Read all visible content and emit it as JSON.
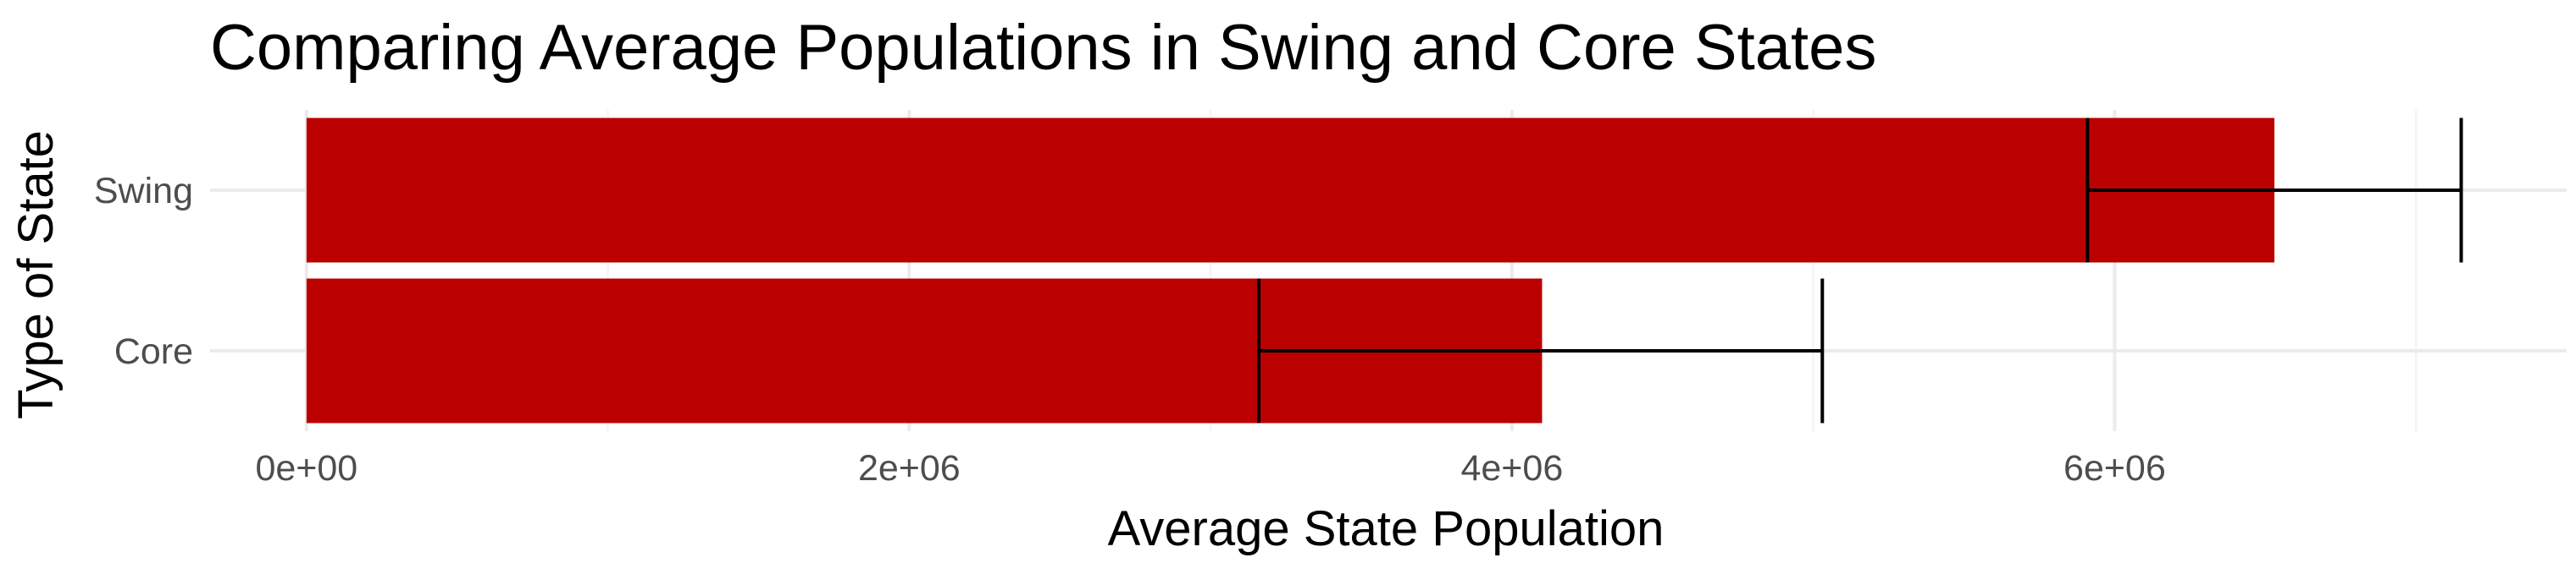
{
  "chart_data": {
    "type": "bar",
    "orientation": "horizontal",
    "title": "Comparing Average Populations in Swing and Core States",
    "xlabel": "Average State Population",
    "ylabel": "Type of State",
    "categories": [
      "Core",
      "Swing"
    ],
    "values": [
      4100000,
      6530000
    ],
    "error_bars": [
      {
        "category": "Core",
        "lower": 3160000,
        "upper": 5030000
      },
      {
        "category": "Swing",
        "lower": 5910000,
        "upper": 7150000
      }
    ],
    "xlim": [
      -320000,
      7500000
    ],
    "x_ticks": [
      0,
      2000000,
      4000000,
      6000000
    ],
    "x_tick_labels": [
      "0e+00",
      "2e+06",
      "4e+06",
      "6e+06"
    ],
    "grid": true,
    "legend": "none",
    "colors": {
      "bar": "#bb0000",
      "error_bar": "#000000",
      "grid": "#ebebeb"
    }
  }
}
